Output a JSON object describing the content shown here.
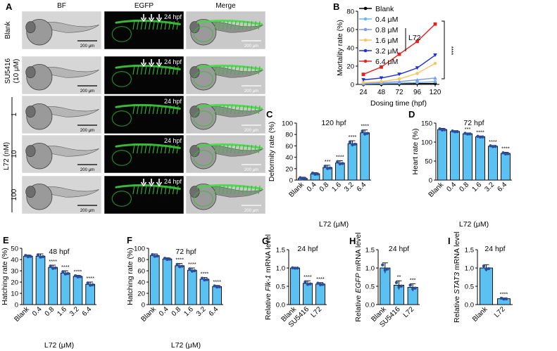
{
  "panelA": {
    "letter": "A",
    "columns": [
      "BF",
      "EGFP",
      "Merge"
    ],
    "rows": [
      {
        "label": "Blank",
        "hpf": "24 hpf",
        "arrows": 3
      },
      {
        "label": "SU5416",
        "sublabel": "(10 μM)",
        "hpf": "24 hpf",
        "arrows": 3
      },
      {
        "label": "1",
        "hpf": "24 hpf",
        "arrows": 0
      },
      {
        "label": "10",
        "hpf": "24 hpf",
        "arrows": 0
      },
      {
        "label": "100",
        "hpf": "24 hpf",
        "arrows": 3
      }
    ],
    "group_label": "L72 (nM)",
    "scale_bar": "200 μm"
  },
  "colors": {
    "bar": "#5bc0f2",
    "dot": "#2b4d9e",
    "axis": "#000000"
  },
  "chart_data": [
    {
      "id": "B",
      "type": "line",
      "letter": "B",
      "xlabel": "Dosing time (hpf)",
      "ylabel": "Mortality rate (%)",
      "x": [
        24,
        48,
        72,
        96,
        120
      ],
      "ylim": [
        0,
        80
      ],
      "yticks": [
        0,
        20,
        40,
        60,
        80
      ],
      "legend_title": "L72",
      "series": [
        {
          "name": "Blank",
          "color": "#000000",
          "values": [
            0,
            0,
            0.5,
            1,
            1
          ]
        },
        {
          "name": "0.4 μM",
          "color": "#6fb6f0",
          "values": [
            0.5,
            1,
            1.5,
            2,
            3
          ]
        },
        {
          "name": "0.8 μM",
          "color": "#7f9be8",
          "values": [
            1,
            2,
            3,
            5,
            7
          ]
        },
        {
          "name": "1.6 μM",
          "color": "#f6c75e",
          "values": [
            2,
            3,
            6,
            12,
            23
          ]
        },
        {
          "name": "3.2 μM",
          "color": "#1f2fd8",
          "values": [
            5,
            7,
            11,
            18,
            32
          ]
        },
        {
          "name": "6.4 μM",
          "color": "#e62020",
          "values": [
            11,
            19,
            33,
            47,
            66
          ]
        }
      ],
      "significance": "****"
    },
    {
      "id": "C",
      "type": "bar",
      "letter": "C",
      "title": "120 hpf",
      "categories": [
        "Blank",
        "0.4",
        "0.8",
        "1.6",
        "3.2",
        "6.4"
      ],
      "values": [
        3,
        11,
        22,
        30,
        64,
        83
      ],
      "errors": [
        2,
        2,
        4,
        4,
        5,
        5
      ],
      "stars": [
        "",
        "",
        "***",
        "****",
        "****",
        "****"
      ],
      "ylim": [
        0,
        100
      ],
      "yticks": [
        0,
        20,
        40,
        60,
        80,
        100
      ],
      "ylabel": "Deformity rate (%)",
      "xlabel": "L72 (μM)"
    },
    {
      "id": "D",
      "type": "bar",
      "letter": "D",
      "title": "72 hpf",
      "categories": [
        "Blank",
        "0.4",
        "0.8",
        "1.6",
        "3.2",
        "6.4"
      ],
      "values": [
        133,
        128,
        122,
        114,
        89,
        70
      ],
      "errors": [
        3,
        2,
        2,
        2,
        2,
        3
      ],
      "stars": [
        "",
        "",
        "***",
        "****",
        "****",
        "****"
      ],
      "ylim": [
        0,
        150
      ],
      "yticks": [
        0,
        50,
        100,
        150
      ],
      "ylabel": "Heart rate (%)",
      "xlabel": "L72 (μM)"
    },
    {
      "id": "E",
      "type": "bar",
      "letter": "E",
      "title": "48 hpf",
      "categories": [
        "Blank",
        "0.4",
        "0.8",
        "1.6",
        "3.2",
        "6.4"
      ],
      "values": [
        43,
        43,
        33,
        28,
        25,
        18
      ],
      "errors": [
        1,
        2,
        2,
        2,
        1,
        2
      ],
      "stars": [
        "",
        "",
        "****",
        "****",
        "****",
        "****"
      ],
      "ylim": [
        0,
        50
      ],
      "yticks": [
        0,
        10,
        20,
        30,
        40,
        50
      ],
      "ylabel": "Hatching rate (%)",
      "xlabel": "L72 (μM)"
    },
    {
      "id": "F",
      "type": "bar",
      "letter": "F",
      "title": "72 hpf",
      "categories": [
        "Blank",
        "0.4",
        "0.8",
        "1.6",
        "3.2",
        "6.4"
      ],
      "values": [
        87,
        81,
        69,
        61,
        45,
        32
      ],
      "errors": [
        3,
        2,
        4,
        4,
        3,
        2
      ],
      "stars": [
        "",
        "",
        "****",
        "****",
        "****",
        "****"
      ],
      "ylim": [
        0,
        100
      ],
      "yticks": [
        0,
        20,
        40,
        60,
        80,
        100
      ],
      "ylabel": "Hatching rate (%)",
      "xlabel": "L72 (μM)"
    },
    {
      "id": "G",
      "type": "bar",
      "letter": "G",
      "title": "24 hpf",
      "categories": [
        "Blank",
        "SU5416",
        "L72"
      ],
      "values": [
        1.0,
        0.58,
        0.56
      ],
      "errors": [
        0.01,
        0.07,
        0.04
      ],
      "stars": [
        "",
        "****",
        "****"
      ],
      "ylim": [
        0,
        1.5
      ],
      "yticks": [
        0.0,
        0.5,
        1.0,
        1.5
      ],
      "ylabel": "Relative Flk-1 mRNA level"
    },
    {
      "id": "H",
      "type": "bar",
      "letter": "H",
      "title": "24 hpf",
      "categories": [
        "Blank",
        "SU5416",
        "L72"
      ],
      "values": [
        1.0,
        0.53,
        0.47
      ],
      "errors": [
        0.14,
        0.12,
        0.1
      ],
      "stars": [
        "",
        "**",
        "***"
      ],
      "ylim": [
        0,
        1.5
      ],
      "yticks": [
        0.0,
        0.5,
        1.0,
        1.5
      ],
      "ylabel": "Relative EGFP mRNA level"
    },
    {
      "id": "I",
      "type": "bar",
      "letter": "I",
      "title": "24 hpf",
      "categories": [
        "Blank",
        "L72"
      ],
      "values": [
        1.0,
        0.16
      ],
      "errors": [
        0.09,
        0.02
      ],
      "stars": [
        "",
        "****"
      ],
      "ylim": [
        0,
        1.5
      ],
      "yticks": [
        0.0,
        0.5,
        1.0,
        1.5
      ],
      "ylabel": "Relative STAT3 mRNA level"
    }
  ]
}
